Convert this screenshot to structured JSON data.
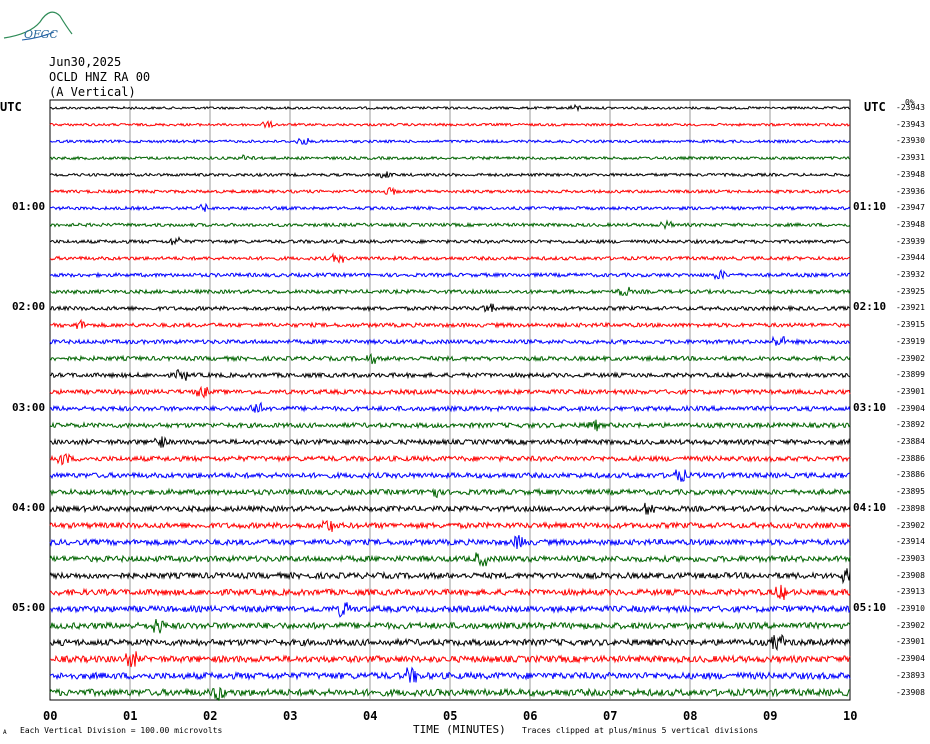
{
  "logo": {
    "text": "OFGC",
    "color": "#2e6b2e"
  },
  "header": {
    "date": "Jun30,2025",
    "station": "OCLD HNZ RA 00",
    "component": "(A Vertical)"
  },
  "left_axis_label": "UTC",
  "right_axis_label": "UTC",
  "corner_small": "0%",
  "colors": {
    "trace": [
      "#000000",
      "#ff0000",
      "#0000ff",
      "#006400"
    ],
    "grid": "#808080"
  },
  "chart_data": {
    "type": "line",
    "xlabel": "TIME (MINUTES)",
    "xlim": [
      0,
      10
    ],
    "x_ticks": [
      "00",
      "01",
      "02",
      "03",
      "04",
      "05",
      "06",
      "07",
      "08",
      "09",
      "10"
    ],
    "trace_count": 36,
    "left_time_labels": [
      "01:00",
      "02:00",
      "03:00",
      "04:00",
      "05:00"
    ],
    "right_time_labels": [
      "01:10",
      "02:10",
      "03:10",
      "04:10",
      "05:10"
    ],
    "right_offsets": [
      "-23943",
      "-23943",
      "-23930",
      "-23931",
      "-23948",
      "-23936",
      "-23947",
      "-23948",
      "-23939",
      "-23944",
      "-23932",
      "-23925",
      "-23921",
      "-23915",
      "-23919",
      "-23902",
      "-23899",
      "-23901",
      "-23904",
      "-23892",
      "-23884",
      "-23886",
      "-23886",
      "-23895",
      "-23898",
      "-23902",
      "-23914",
      "-23903",
      "-23908",
      "-23913",
      "-23910",
      "-23902",
      "-23901",
      "-23904",
      "-23893",
      "-23908"
    ]
  },
  "footer": {
    "division_note": "Each Vertical Division = 100.00 microvolts",
    "clip_note": "Traces clipped at plus/minus 5 vertical divisions",
    "small_mark": "A"
  }
}
